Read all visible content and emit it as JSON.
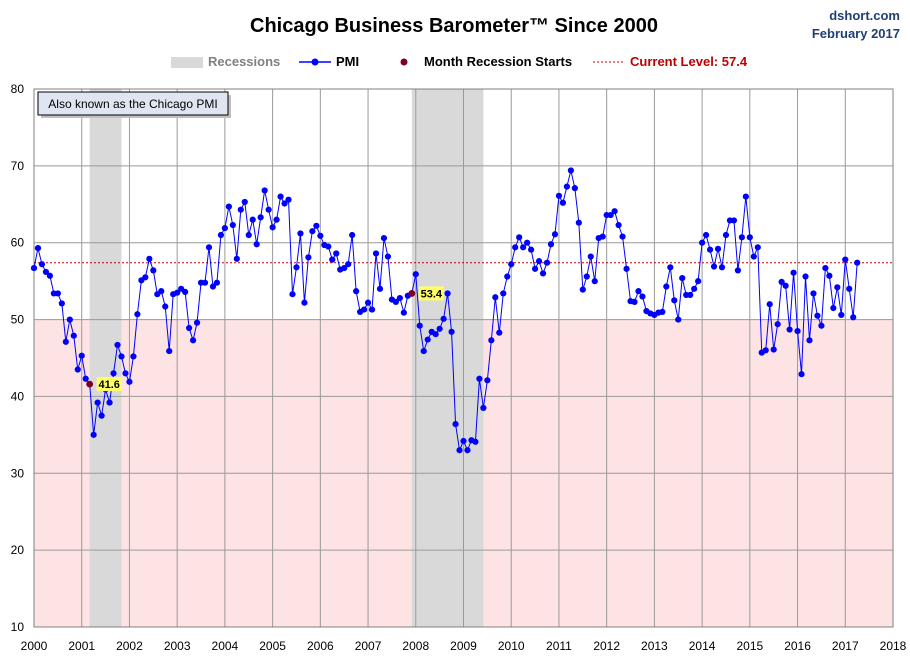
{
  "chart_data": {
    "type": "line",
    "title": "Chicago Business Barometer™ Since 2000",
    "source": "dshort.com",
    "date": "February 2017",
    "annotation_box": "Also known as the Chicago PMI",
    "legend": {
      "recessions": "Recessions",
      "pmi": "PMI",
      "recession_start": "Month Recession Starts",
      "current_level": "Current Level: 57.4"
    },
    "colors": {
      "pmi": "#0000ff",
      "recession_start_dot": "#7a0026",
      "current_level": "#c00000",
      "recession_band": "#d9d9d9",
      "contraction_zone": "#fde3e3",
      "grid": "#9a9a9a",
      "label_highlight": "#ffff66"
    },
    "x_range": [
      2000,
      2018
    ],
    "ylim": [
      10,
      80
    ],
    "x_ticks": [
      "2000",
      "2001",
      "2002",
      "2003",
      "2004",
      "2005",
      "2006",
      "2007",
      "2008",
      "2009",
      "2010",
      "2011",
      "2012",
      "2013",
      "2014",
      "2015",
      "2016",
      "2017",
      "2018"
    ],
    "y_ticks": [
      "10",
      "20",
      "30",
      "40",
      "50",
      "60",
      "70",
      "80"
    ],
    "current_level": 57.4,
    "contraction_threshold": 50,
    "recessions": [
      {
        "start": "2001-03",
        "end": "2001-11"
      },
      {
        "start": "2007-12",
        "end": "2009-06"
      }
    ],
    "recession_starts": [
      {
        "month": "2001-03",
        "value": 41.6,
        "label": "41.6"
      },
      {
        "month": "2007-12",
        "value": 53.4,
        "label": "53.4"
      }
    ],
    "series": [
      {
        "name": "PMI",
        "start_month": "2000-01",
        "values": [
          56.7,
          59.3,
          57.2,
          56.2,
          55.7,
          53.4,
          53.4,
          52.1,
          47.1,
          50.0,
          47.9,
          43.5,
          45.3,
          42.3,
          41.6,
          35.0,
          39.2,
          37.5,
          40.9,
          39.2,
          43.0,
          46.7,
          45.2,
          43.0,
          41.9,
          45.2,
          50.7,
          55.1,
          55.5,
          57.9,
          56.4,
          53.3,
          53.7,
          51.7,
          45.9,
          53.3,
          53.5,
          54.0,
          53.6,
          48.9,
          47.3,
          49.6,
          54.8,
          54.8,
          59.4,
          54.3,
          54.8,
          61.0,
          61.9,
          64.7,
          62.3,
          57.9,
          64.3,
          65.3,
          61.0,
          63.0,
          59.8,
          63.3,
          66.8,
          64.3,
          62.0,
          63.0,
          66.0,
          65.1,
          65.6,
          53.3,
          56.8,
          61.2,
          52.2,
          58.1,
          61.5,
          62.2,
          60.9,
          59.7,
          59.5,
          57.8,
          58.6,
          56.5,
          56.7,
          57.2,
          61.0,
          53.7,
          51.0,
          51.3,
          52.2,
          51.3,
          58.6,
          54.0,
          60.6,
          58.2,
          52.6,
          52.3,
          52.8,
          50.9,
          53.1,
          53.4,
          55.9,
          49.2,
          45.9,
          47.4,
          48.4,
          48.1,
          48.8,
          50.1,
          53.4,
          48.4,
          36.4,
          33.0,
          34.2,
          33.0,
          34.3,
          34.1,
          42.3,
          38.5,
          42.1,
          47.3,
          52.9,
          48.3,
          53.4,
          55.6,
          57.2,
          59.4,
          60.7,
          59.4,
          60.0,
          59.1,
          56.6,
          57.6,
          56.0,
          57.4,
          59.8,
          61.1,
          66.1,
          65.2,
          67.3,
          69.4,
          67.1,
          62.6,
          53.9,
          55.6,
          58.2,
          55.0,
          60.6,
          60.8,
          63.6,
          63.6,
          64.1,
          62.3,
          60.8,
          56.6,
          52.4,
          52.3,
          53.7,
          53.0,
          51.1,
          50.8,
          50.6,
          50.9,
          51.0,
          54.3,
          56.8,
          52.5,
          50.0,
          55.4,
          53.2,
          53.2,
          54.0,
          55.0,
          60.0,
          61.0,
          59.1,
          56.9,
          59.2,
          56.8,
          61.0,
          62.9,
          62.9,
          56.4,
          60.7,
          66.0,
          60.7,
          58.2,
          59.4,
          45.7,
          46.0,
          52.0,
          46.1,
          49.4,
          54.9,
          54.4,
          48.7,
          56.1,
          48.5,
          42.9,
          55.6,
          47.3,
          53.4,
          50.5,
          49.2,
          56.7,
          55.7,
          51.5,
          54.2,
          50.6,
          57.8,
          54.0,
          50.3,
          57.4
        ]
      }
    ]
  }
}
